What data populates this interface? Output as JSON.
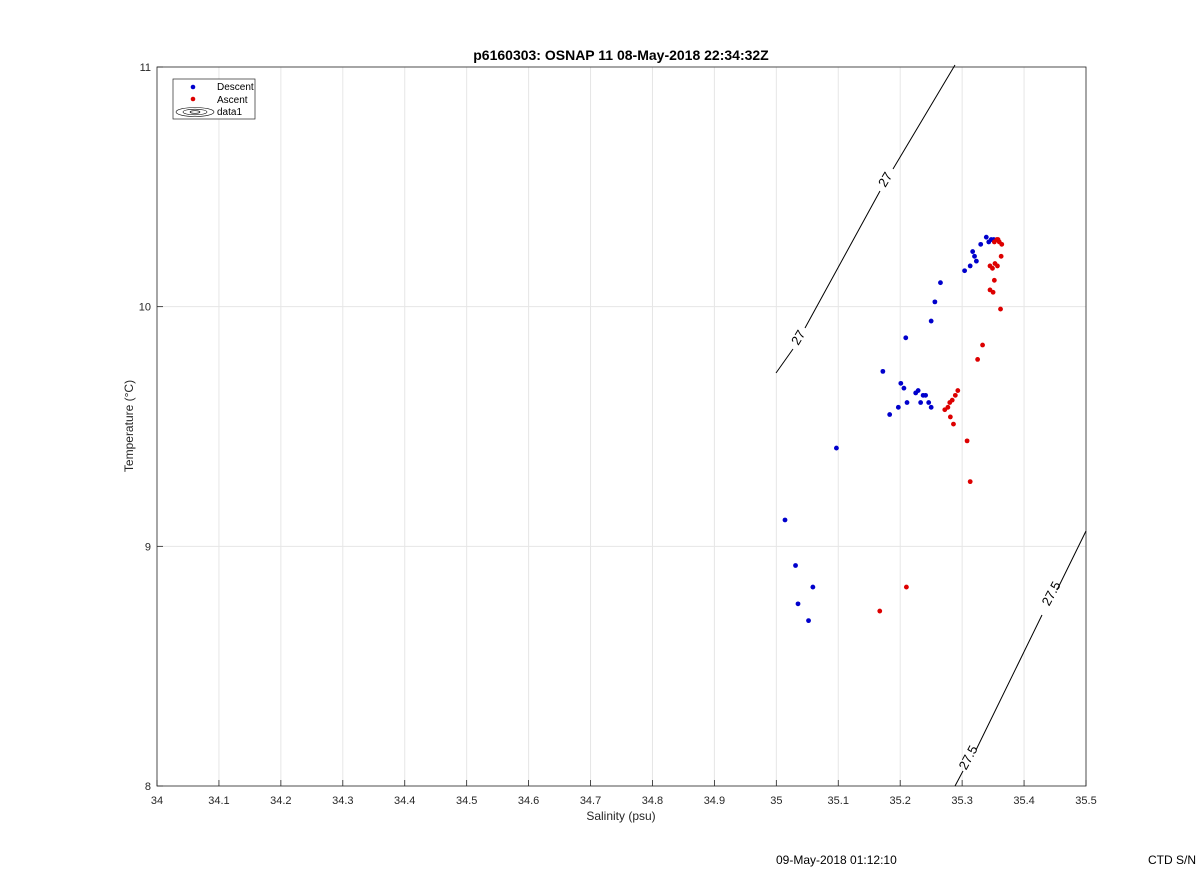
{
  "chart_data": {
    "type": "scatter",
    "title": "p6160303: OSNAP 11 08-May-2018 22:34:32Z",
    "xlabel": "Salinity (psu)",
    "ylabel": "Temperature (°C)",
    "xlim": [
      34,
      35.5
    ],
    "ylim": [
      8,
      11
    ],
    "xticks": [
      "34",
      "34.1",
      "34.2",
      "34.3",
      "34.4",
      "34.5",
      "34.6",
      "34.7",
      "34.8",
      "34.9",
      "35",
      "35.1",
      "35.2",
      "35.3",
      "35.4",
      "35.5"
    ],
    "yticks": [
      "8",
      "9",
      "10",
      "11"
    ],
    "grid": true,
    "legend": {
      "placement": "top-left",
      "entries": [
        "Descent",
        "Ascent",
        "data1"
      ]
    },
    "series": [
      {
        "name": "Descent",
        "color": "#0000cc",
        "points": [
          [
            35.014,
            9.11
          ],
          [
            35.097,
            9.41
          ],
          [
            35.031,
            8.92
          ],
          [
            35.035,
            8.76
          ],
          [
            35.052,
            8.69
          ],
          [
            35.059,
            8.83
          ],
          [
            35.172,
            9.73
          ],
          [
            35.183,
            9.55
          ],
          [
            35.197,
            9.58
          ],
          [
            35.201,
            9.68
          ],
          [
            35.206,
            9.66
          ],
          [
            35.211,
            9.6
          ],
          [
            35.225,
            9.64
          ],
          [
            35.229,
            9.65
          ],
          [
            35.233,
            9.6
          ],
          [
            35.237,
            9.63
          ],
          [
            35.241,
            9.63
          ],
          [
            35.246,
            9.6
          ],
          [
            35.25,
            9.58
          ],
          [
            35.209,
            9.87
          ],
          [
            35.25,
            9.94
          ],
          [
            35.256,
            10.02
          ],
          [
            35.265,
            10.1
          ],
          [
            35.304,
            10.15
          ],
          [
            35.313,
            10.17
          ],
          [
            35.317,
            10.23
          ],
          [
            35.32,
            10.21
          ],
          [
            35.323,
            10.19
          ],
          [
            35.33,
            10.26
          ],
          [
            35.339,
            10.29
          ],
          [
            35.343,
            10.27
          ],
          [
            35.347,
            10.28
          ],
          [
            35.351,
            10.28
          ]
        ]
      },
      {
        "name": "Ascent",
        "color": "#dd0000",
        "points": [
          [
            35.167,
            8.73
          ],
          [
            35.21,
            8.83
          ],
          [
            35.313,
            9.27
          ],
          [
            35.308,
            9.44
          ],
          [
            35.286,
            9.51
          ],
          [
            35.281,
            9.54
          ],
          [
            35.272,
            9.57
          ],
          [
            35.277,
            9.58
          ],
          [
            35.28,
            9.6
          ],
          [
            35.284,
            9.61
          ],
          [
            35.289,
            9.63
          ],
          [
            35.293,
            9.65
          ],
          [
            35.325,
            9.78
          ],
          [
            35.333,
            9.84
          ],
          [
            35.362,
            9.99
          ],
          [
            35.35,
            10.06
          ],
          [
            35.345,
            10.07
          ],
          [
            35.352,
            10.11
          ],
          [
            35.345,
            10.17
          ],
          [
            35.349,
            10.16
          ],
          [
            35.353,
            10.18
          ],
          [
            35.357,
            10.17
          ],
          [
            35.363,
            10.21
          ],
          [
            35.352,
            10.27
          ],
          [
            35.356,
            10.28
          ],
          [
            35.36,
            10.27
          ],
          [
            35.364,
            10.26
          ],
          [
            35.358,
            10.28
          ]
        ]
      }
    ],
    "contours": [
      {
        "level": "27",
        "labels": [
          "27",
          "27"
        ]
      },
      {
        "level": "27.5",
        "labels": [
          "27.5",
          "27.5"
        ]
      }
    ]
  },
  "footer": {
    "timestamp": "09-May-2018 01:12:10",
    "serial": "CTD S/N"
  }
}
